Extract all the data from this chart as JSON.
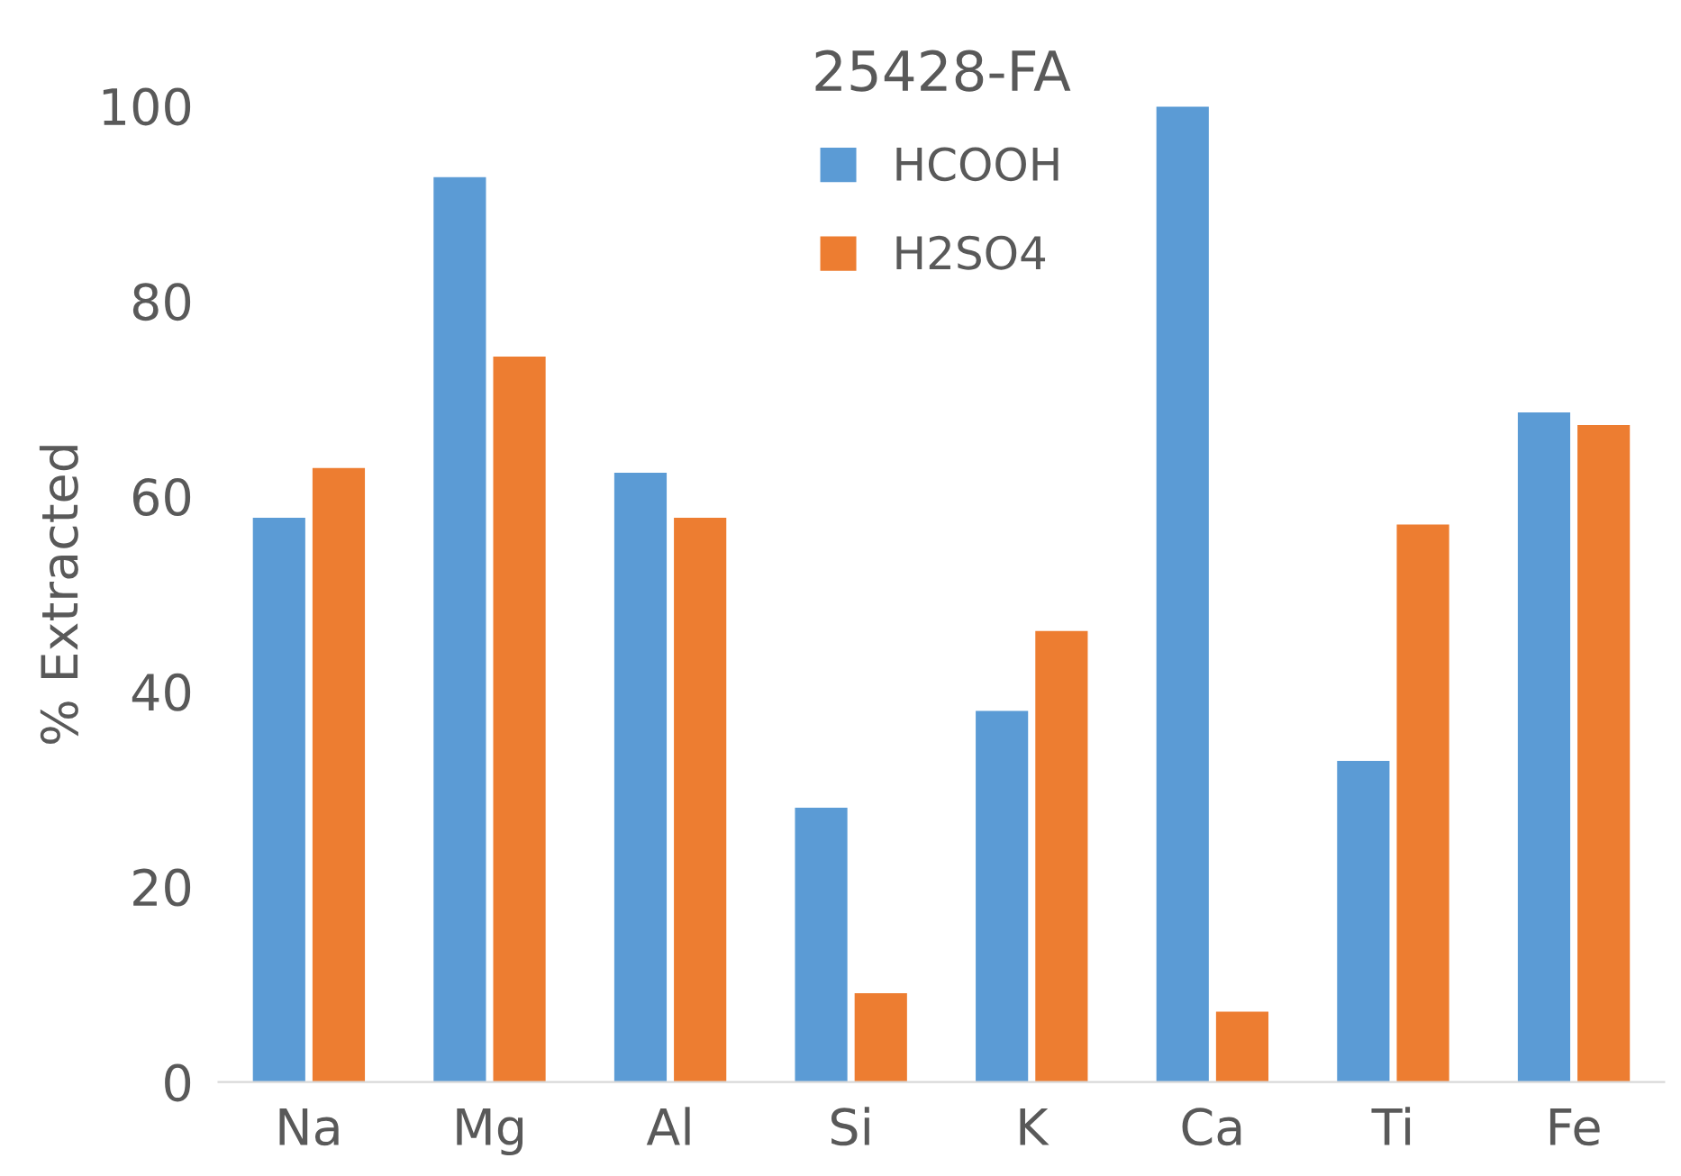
{
  "chart_data": {
    "type": "bar",
    "title": "25428-FA",
    "ylabel": "% Extracted",
    "categories": [
      "Na",
      "Mg",
      "Al",
      "Si",
      "K",
      "Ca",
      "Ti",
      "Fe"
    ],
    "series": [
      {
        "name": "HCOOH",
        "color": "#5b9bd5",
        "values": [
          57.8,
          92.7,
          62.4,
          28.1,
          38.0,
          99.9,
          32.9,
          68.6
        ]
      },
      {
        "name": "H2SO4",
        "color": "#ed7d31",
        "values": [
          62.9,
          74.3,
          57.8,
          9.1,
          46.2,
          7.2,
          57.1,
          67.3
        ]
      }
    ],
    "ylim": [
      0,
      100
    ],
    "yticks": [
      0,
      20,
      40,
      60,
      80,
      100
    ],
    "grid": false,
    "legend": "top"
  }
}
